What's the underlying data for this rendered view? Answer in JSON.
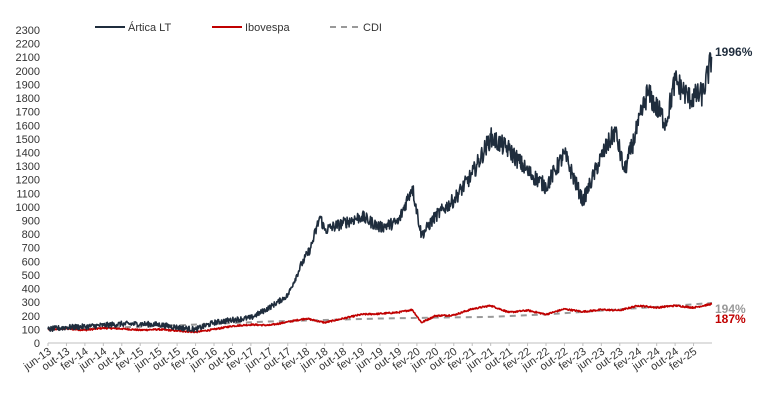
{
  "chart_data": {
    "type": "line",
    "title": "",
    "xlabel": "",
    "ylabel": "",
    "ylim": [
      0,
      2300
    ],
    "xlim": [
      "2013-06",
      "2025-06"
    ],
    "grid": false,
    "legend_position": "top",
    "y_ticks": [
      0,
      100,
      200,
      300,
      400,
      500,
      600,
      700,
      800,
      900,
      1000,
      1100,
      1200,
      1300,
      1400,
      1500,
      1600,
      1700,
      1800,
      1900,
      2000,
      2100,
      2200,
      2300
    ],
    "x_ticks": [
      {
        "date": "2013-06",
        "label": "jun-13"
      },
      {
        "date": "2013-10",
        "label": "out-13"
      },
      {
        "date": "2014-02",
        "label": "fev-14"
      },
      {
        "date": "2014-06",
        "label": "jun-14"
      },
      {
        "date": "2014-10",
        "label": "out-14"
      },
      {
        "date": "2015-02",
        "label": "fev-15"
      },
      {
        "date": "2015-06",
        "label": "jun-15"
      },
      {
        "date": "2015-10",
        "label": "out-15"
      },
      {
        "date": "2016-02",
        "label": "fev-16"
      },
      {
        "date": "2016-06",
        "label": "jun-16"
      },
      {
        "date": "2016-10",
        "label": "out-16"
      },
      {
        "date": "2017-02",
        "label": "fev-17"
      },
      {
        "date": "2017-06",
        "label": "jun-17"
      },
      {
        "date": "2017-10",
        "label": "out-17"
      },
      {
        "date": "2018-02",
        "label": "fev-18"
      },
      {
        "date": "2018-06",
        "label": "jun-18"
      },
      {
        "date": "2018-10",
        "label": "out-18"
      },
      {
        "date": "2019-02",
        "label": "fev-19"
      },
      {
        "date": "2019-06",
        "label": "jun-19"
      },
      {
        "date": "2019-10",
        "label": "out-19"
      },
      {
        "date": "2020-02",
        "label": "fev-20"
      },
      {
        "date": "2020-06",
        "label": "jun-20"
      },
      {
        "date": "2020-10",
        "label": "out-20"
      },
      {
        "date": "2021-02",
        "label": "fev-21"
      },
      {
        "date": "2021-06",
        "label": "jun-21"
      },
      {
        "date": "2021-10",
        "label": "out-21"
      },
      {
        "date": "2022-02",
        "label": "fev-22"
      },
      {
        "date": "2022-06",
        "label": "jun-22"
      },
      {
        "date": "2022-10",
        "label": "out-22"
      },
      {
        "date": "2023-02",
        "label": "fev-23"
      },
      {
        "date": "2023-06",
        "label": "jun-23"
      },
      {
        "date": "2023-10",
        "label": "out-23"
      },
      {
        "date": "2024-02",
        "label": "fev-24"
      },
      {
        "date": "2024-06",
        "label": "jun-24"
      },
      {
        "date": "2024-10",
        "label": "out-24"
      },
      {
        "date": "2025-02",
        "label": "fev-25"
      }
    ],
    "series": [
      {
        "name": "Ártica LT",
        "color": "#1f2d3d",
        "style": "solid",
        "end_label": "1996%",
        "points": [
          {
            "x": "2013-06",
            "y": 100
          },
          {
            "x": "2013-10",
            "y": 115
          },
          {
            "x": "2014-02",
            "y": 120
          },
          {
            "x": "2014-06",
            "y": 130
          },
          {
            "x": "2014-10",
            "y": 140
          },
          {
            "x": "2015-02",
            "y": 140
          },
          {
            "x": "2015-06",
            "y": 135
          },
          {
            "x": "2015-10",
            "y": 115
          },
          {
            "x": "2016-02",
            "y": 100
          },
          {
            "x": "2016-06",
            "y": 150
          },
          {
            "x": "2016-10",
            "y": 170
          },
          {
            "x": "2017-02",
            "y": 185
          },
          {
            "x": "2017-06",
            "y": 260
          },
          {
            "x": "2017-10",
            "y": 350
          },
          {
            "x": "2018-01",
            "y": 580
          },
          {
            "x": "2018-03",
            "y": 700
          },
          {
            "x": "2018-05",
            "y": 930
          },
          {
            "x": "2018-06",
            "y": 830
          },
          {
            "x": "2018-10",
            "y": 880
          },
          {
            "x": "2019-02",
            "y": 930
          },
          {
            "x": "2019-06",
            "y": 850
          },
          {
            "x": "2019-10",
            "y": 890
          },
          {
            "x": "2020-01",
            "y": 1150
          },
          {
            "x": "2020-03",
            "y": 790
          },
          {
            "x": "2020-06",
            "y": 930
          },
          {
            "x": "2020-10",
            "y": 1050
          },
          {
            "x": "2021-02",
            "y": 1240
          },
          {
            "x": "2021-06",
            "y": 1510
          },
          {
            "x": "2021-10",
            "y": 1420
          },
          {
            "x": "2022-02",
            "y": 1260
          },
          {
            "x": "2022-06",
            "y": 1150
          },
          {
            "x": "2022-10",
            "y": 1390
          },
          {
            "x": "2023-02",
            "y": 1040
          },
          {
            "x": "2023-06",
            "y": 1370
          },
          {
            "x": "2023-09",
            "y": 1560
          },
          {
            "x": "2023-11",
            "y": 1260
          },
          {
            "x": "2024-02",
            "y": 1600
          },
          {
            "x": "2024-04",
            "y": 1840
          },
          {
            "x": "2024-08",
            "y": 1620
          },
          {
            "x": "2024-10",
            "y": 1930
          },
          {
            "x": "2025-01",
            "y": 1800
          },
          {
            "x": "2025-04",
            "y": 1830
          },
          {
            "x": "2025-06",
            "y": 2096
          }
        ]
      },
      {
        "name": "Ibovespa",
        "color": "#c00000",
        "style": "solid",
        "end_label": "187%",
        "points": [
          {
            "x": "2013-06",
            "y": 100
          },
          {
            "x": "2013-10",
            "y": 105
          },
          {
            "x": "2014-02",
            "y": 95
          },
          {
            "x": "2014-06",
            "y": 110
          },
          {
            "x": "2014-10",
            "y": 105
          },
          {
            "x": "2015-02",
            "y": 95
          },
          {
            "x": "2015-06",
            "y": 100
          },
          {
            "x": "2015-10",
            "y": 90
          },
          {
            "x": "2016-02",
            "y": 80
          },
          {
            "x": "2016-06",
            "y": 100
          },
          {
            "x": "2016-10",
            "y": 125
          },
          {
            "x": "2017-02",
            "y": 135
          },
          {
            "x": "2017-06",
            "y": 130
          },
          {
            "x": "2017-10",
            "y": 155
          },
          {
            "x": "2018-02",
            "y": 180
          },
          {
            "x": "2018-06",
            "y": 150
          },
          {
            "x": "2018-10",
            "y": 180
          },
          {
            "x": "2019-02",
            "y": 210
          },
          {
            "x": "2019-06",
            "y": 215
          },
          {
            "x": "2019-10",
            "y": 225
          },
          {
            "x": "2020-01",
            "y": 245
          },
          {
            "x": "2020-03",
            "y": 150
          },
          {
            "x": "2020-06",
            "y": 200
          },
          {
            "x": "2020-10",
            "y": 205
          },
          {
            "x": "2021-02",
            "y": 250
          },
          {
            "x": "2021-06",
            "y": 275
          },
          {
            "x": "2021-10",
            "y": 225
          },
          {
            "x": "2022-02",
            "y": 240
          },
          {
            "x": "2022-06",
            "y": 210
          },
          {
            "x": "2022-10",
            "y": 250
          },
          {
            "x": "2023-02",
            "y": 230
          },
          {
            "x": "2023-06",
            "y": 245
          },
          {
            "x": "2023-10",
            "y": 240
          },
          {
            "x": "2024-02",
            "y": 275
          },
          {
            "x": "2024-06",
            "y": 260
          },
          {
            "x": "2024-10",
            "y": 275
          },
          {
            "x": "2025-02",
            "y": 260
          },
          {
            "x": "2025-06",
            "y": 287
          }
        ]
      },
      {
        "name": "CDI",
        "color": "#999999",
        "style": "dashed",
        "end_label": "194%",
        "points": [
          {
            "x": "2013-06",
            "y": 100
          },
          {
            "x": "2014-06",
            "y": 111
          },
          {
            "x": "2015-06",
            "y": 124
          },
          {
            "x": "2016-06",
            "y": 141
          },
          {
            "x": "2017-06",
            "y": 158
          },
          {
            "x": "2018-06",
            "y": 169
          },
          {
            "x": "2019-06",
            "y": 180
          },
          {
            "x": "2020-06",
            "y": 187
          },
          {
            "x": "2021-06",
            "y": 192
          },
          {
            "x": "2022-06",
            "y": 210
          },
          {
            "x": "2023-06",
            "y": 238
          },
          {
            "x": "2024-06",
            "y": 265
          },
          {
            "x": "2025-06",
            "y": 294
          }
        ]
      }
    ]
  }
}
